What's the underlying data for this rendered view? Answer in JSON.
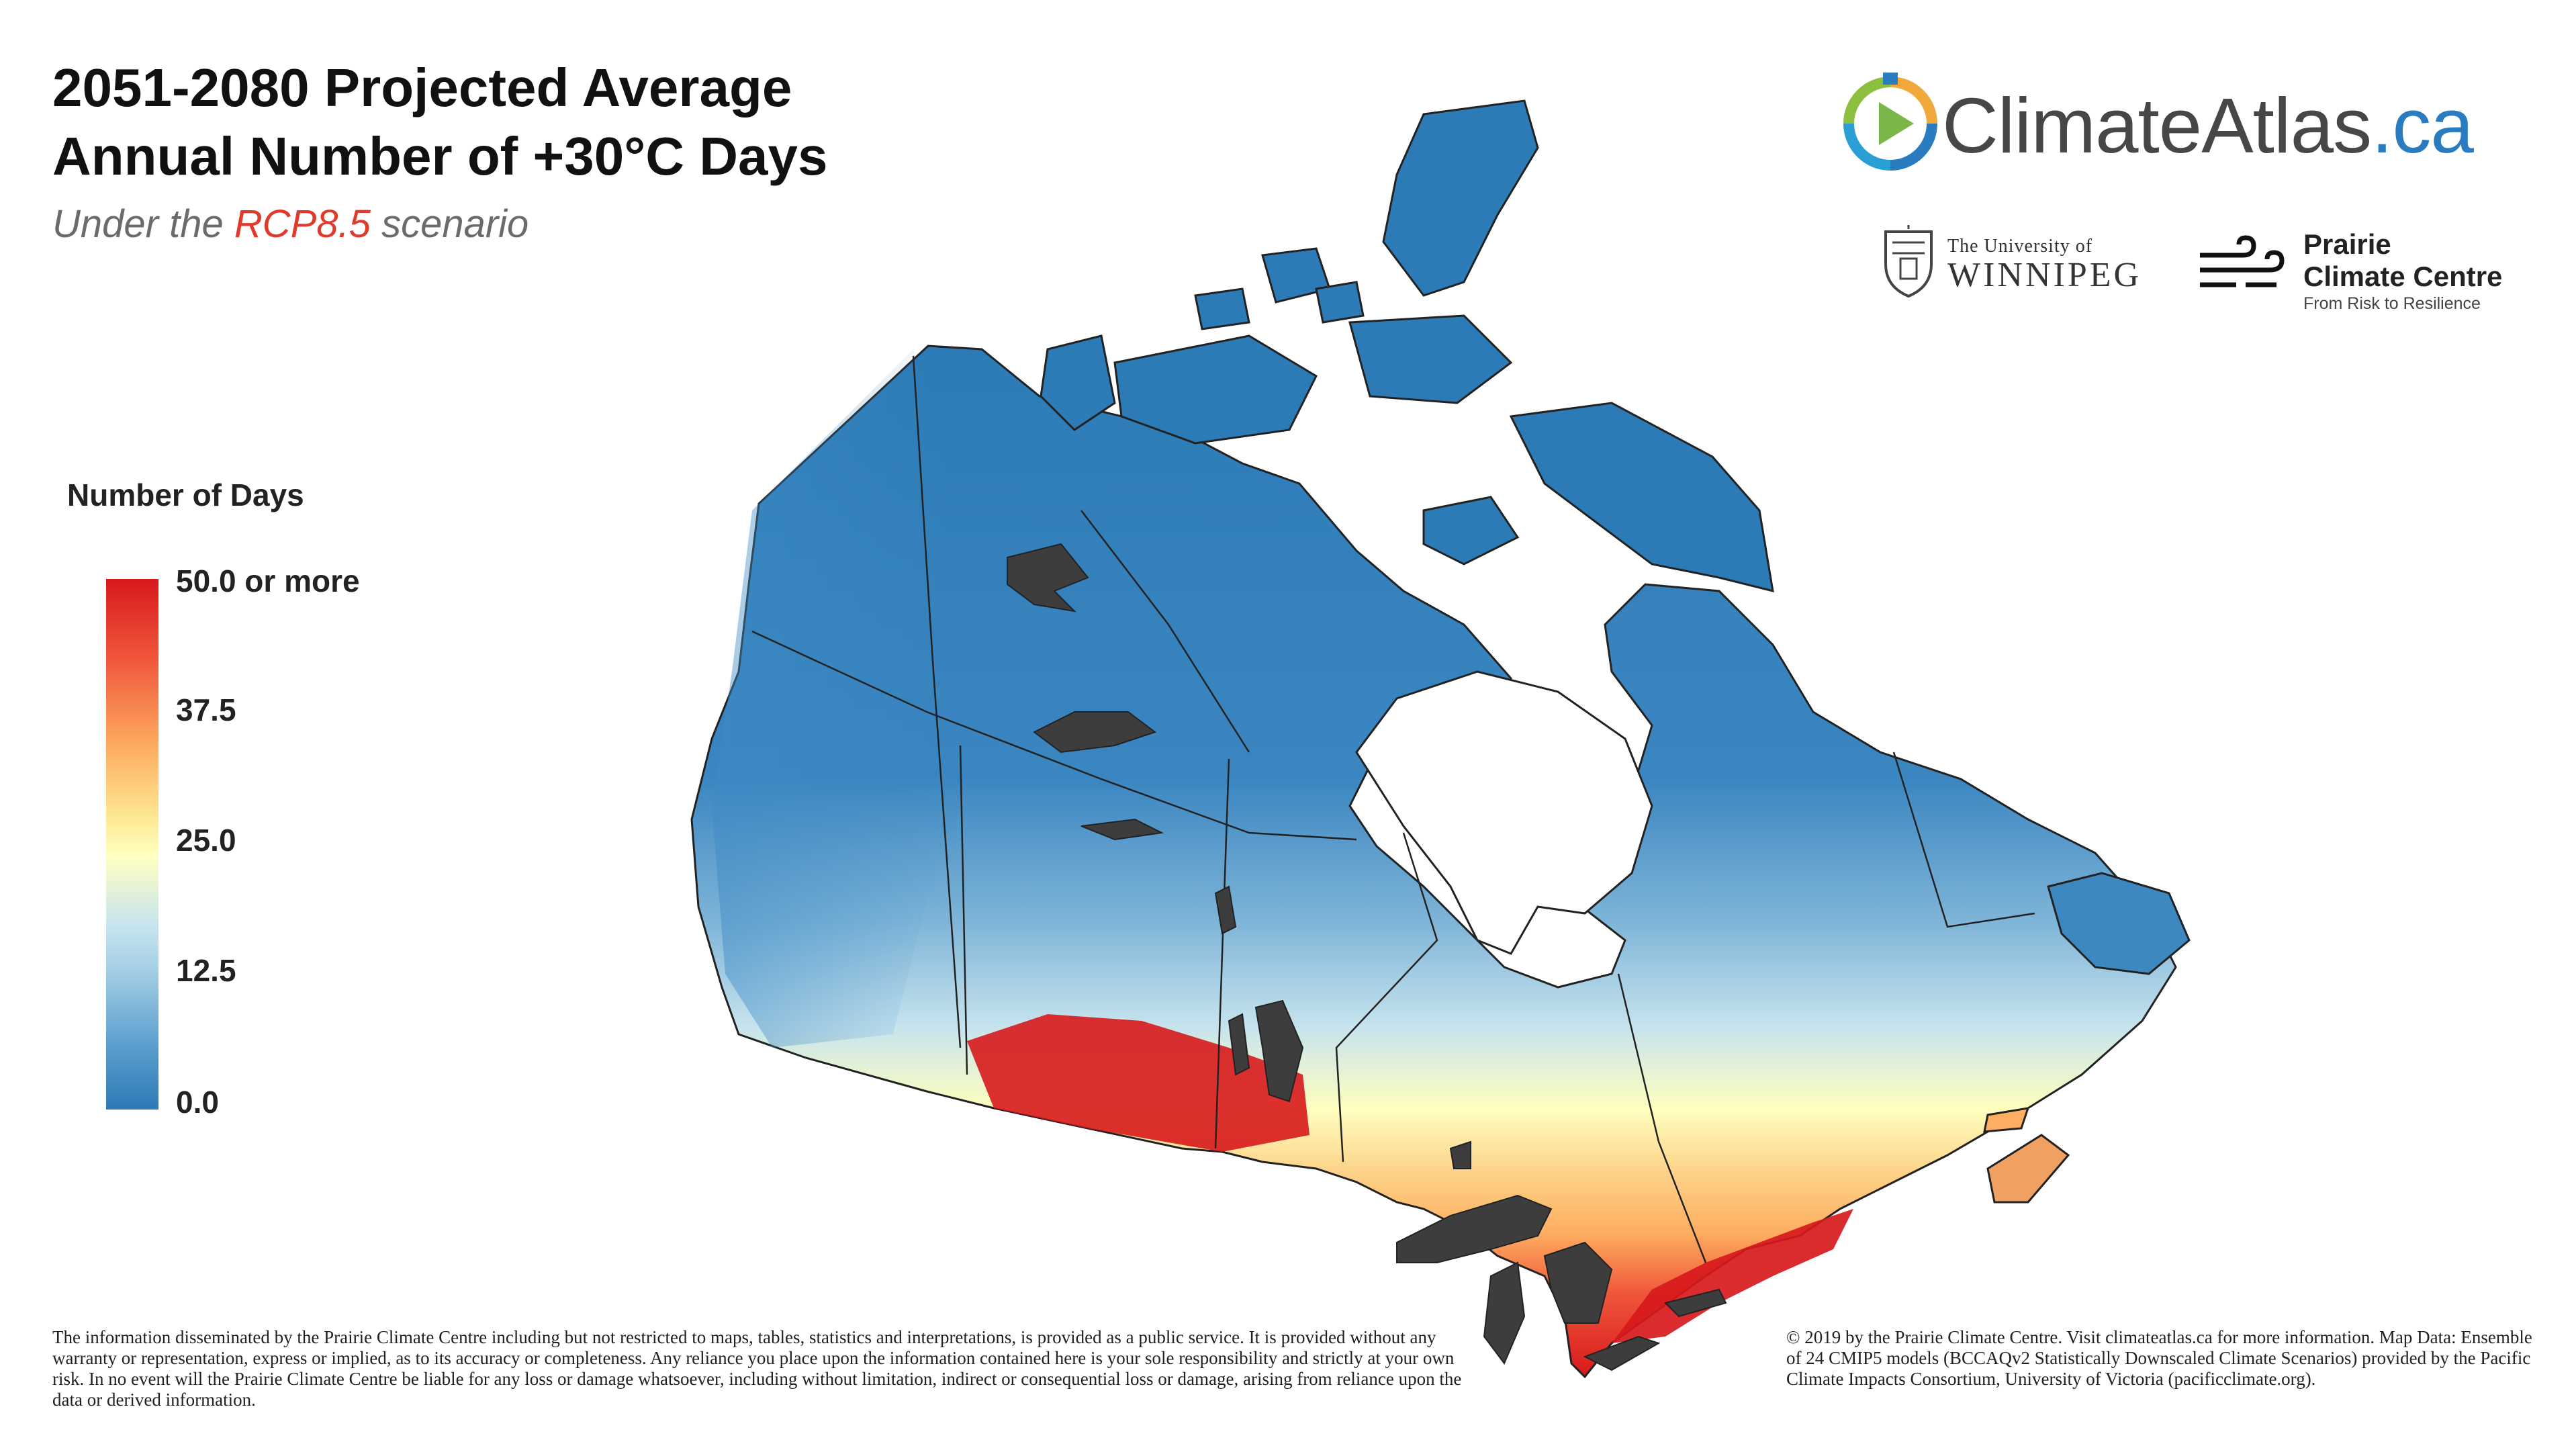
{
  "title_line1": "2051-2080 Projected Average",
  "title_line2": "Annual Number of +30°C Days",
  "subtitle_pre": "Under the",
  "subtitle_scenario": "RCP8.5",
  "subtitle_post": "scenario",
  "logo": {
    "text_main": "ClimateAtlas",
    "text_suffix": ".ca"
  },
  "partner_uw": {
    "line1": "The University of",
    "line2": "WINNIPEG"
  },
  "partner_pcc": {
    "line1": "Prairie",
    "line2": "Climate Centre",
    "tagline": "From Risk to Resilience"
  },
  "legend": {
    "title": "Number of Days",
    "ticks": [
      "50.0 or more",
      "37.5",
      "25.0",
      "12.5",
      "0.0"
    ],
    "colors": {
      "high": "#d7191c",
      "mid_high": "#fdae61",
      "mid": "#ffffbf",
      "mid_low": "#9ecbe2",
      "low": "#2c7bb6"
    }
  },
  "map": {
    "water_color": "#3d3d3d",
    "boundary_color": "#222222"
  },
  "disclaimer": "The information disseminated by the Prairie Climate Centre including but not restricted to maps, tables, statistics and interpretations, is provided as a public service. It is provided without any warranty or representation, express or implied, as to its accuracy or completeness. Any reliance you place upon the information contained here is your sole responsibility and strictly at your own risk. In no event will the Prairie Climate Centre be liable for any loss or damage whatsoever, including without limitation, indirect or consequential loss or damage, arising from reliance upon the data or derived information.",
  "credits": "© 2019 by the Prairie Climate Centre. Visit climateatlas.ca for more information. Map Data: Ensemble of 24 CMIP5 models (BCCAQv2 Statistically Downscaled Climate Scenarios) provided by the Pacific Climate Impacts Consortium, University of Victoria (pacificclimate.org)."
}
